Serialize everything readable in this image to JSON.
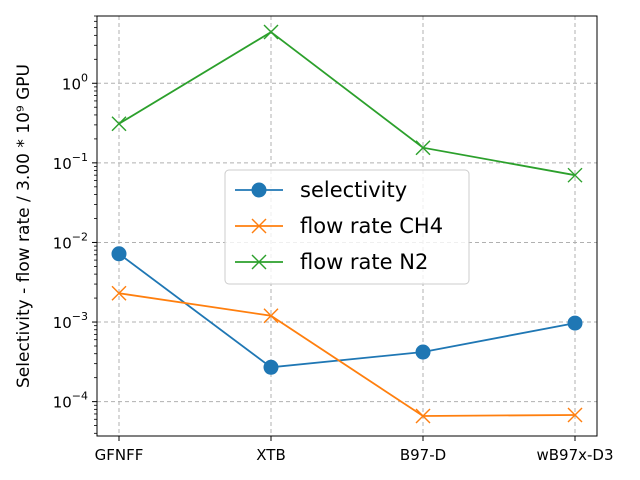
{
  "chart_data": {
    "type": "line",
    "categories": [
      "GFNFF",
      "XTB",
      "B97-D",
      "wB97x-D3"
    ],
    "yscale": "log",
    "ylabel": "Selectivity - flow rate / 3.00 * 10⁹ GPU",
    "xlabel": "",
    "title": "",
    "ylim": [
      3.7e-05,
      7.0
    ],
    "yticks": [
      {
        "value": 0.0001,
        "base": "10",
        "exp": "−4"
      },
      {
        "value": 0.001,
        "base": "10",
        "exp": "−3"
      },
      {
        "value": 0.01,
        "base": "10",
        "exp": "−2"
      },
      {
        "value": 0.1,
        "base": "10",
        "exp": "−1"
      },
      {
        "value": 1,
        "base": "10",
        "exp": "0"
      }
    ],
    "grid": true,
    "legend_position": "center",
    "series": [
      {
        "name": "selectivity",
        "marker": "circle",
        "color": "#1f77b4",
        "values": [
          0.0072,
          0.00027,
          0.00042,
          0.00097
        ]
      },
      {
        "name": "flow rate CH4",
        "marker": "x",
        "color": "#ff7f0e",
        "values": [
          0.0023,
          0.0012,
          6.6e-05,
          6.8e-05
        ]
      },
      {
        "name": "flow rate N2",
        "marker": "x",
        "color": "#2ca02c",
        "values": [
          0.31,
          4.4,
          0.155,
          0.07
        ]
      }
    ]
  }
}
